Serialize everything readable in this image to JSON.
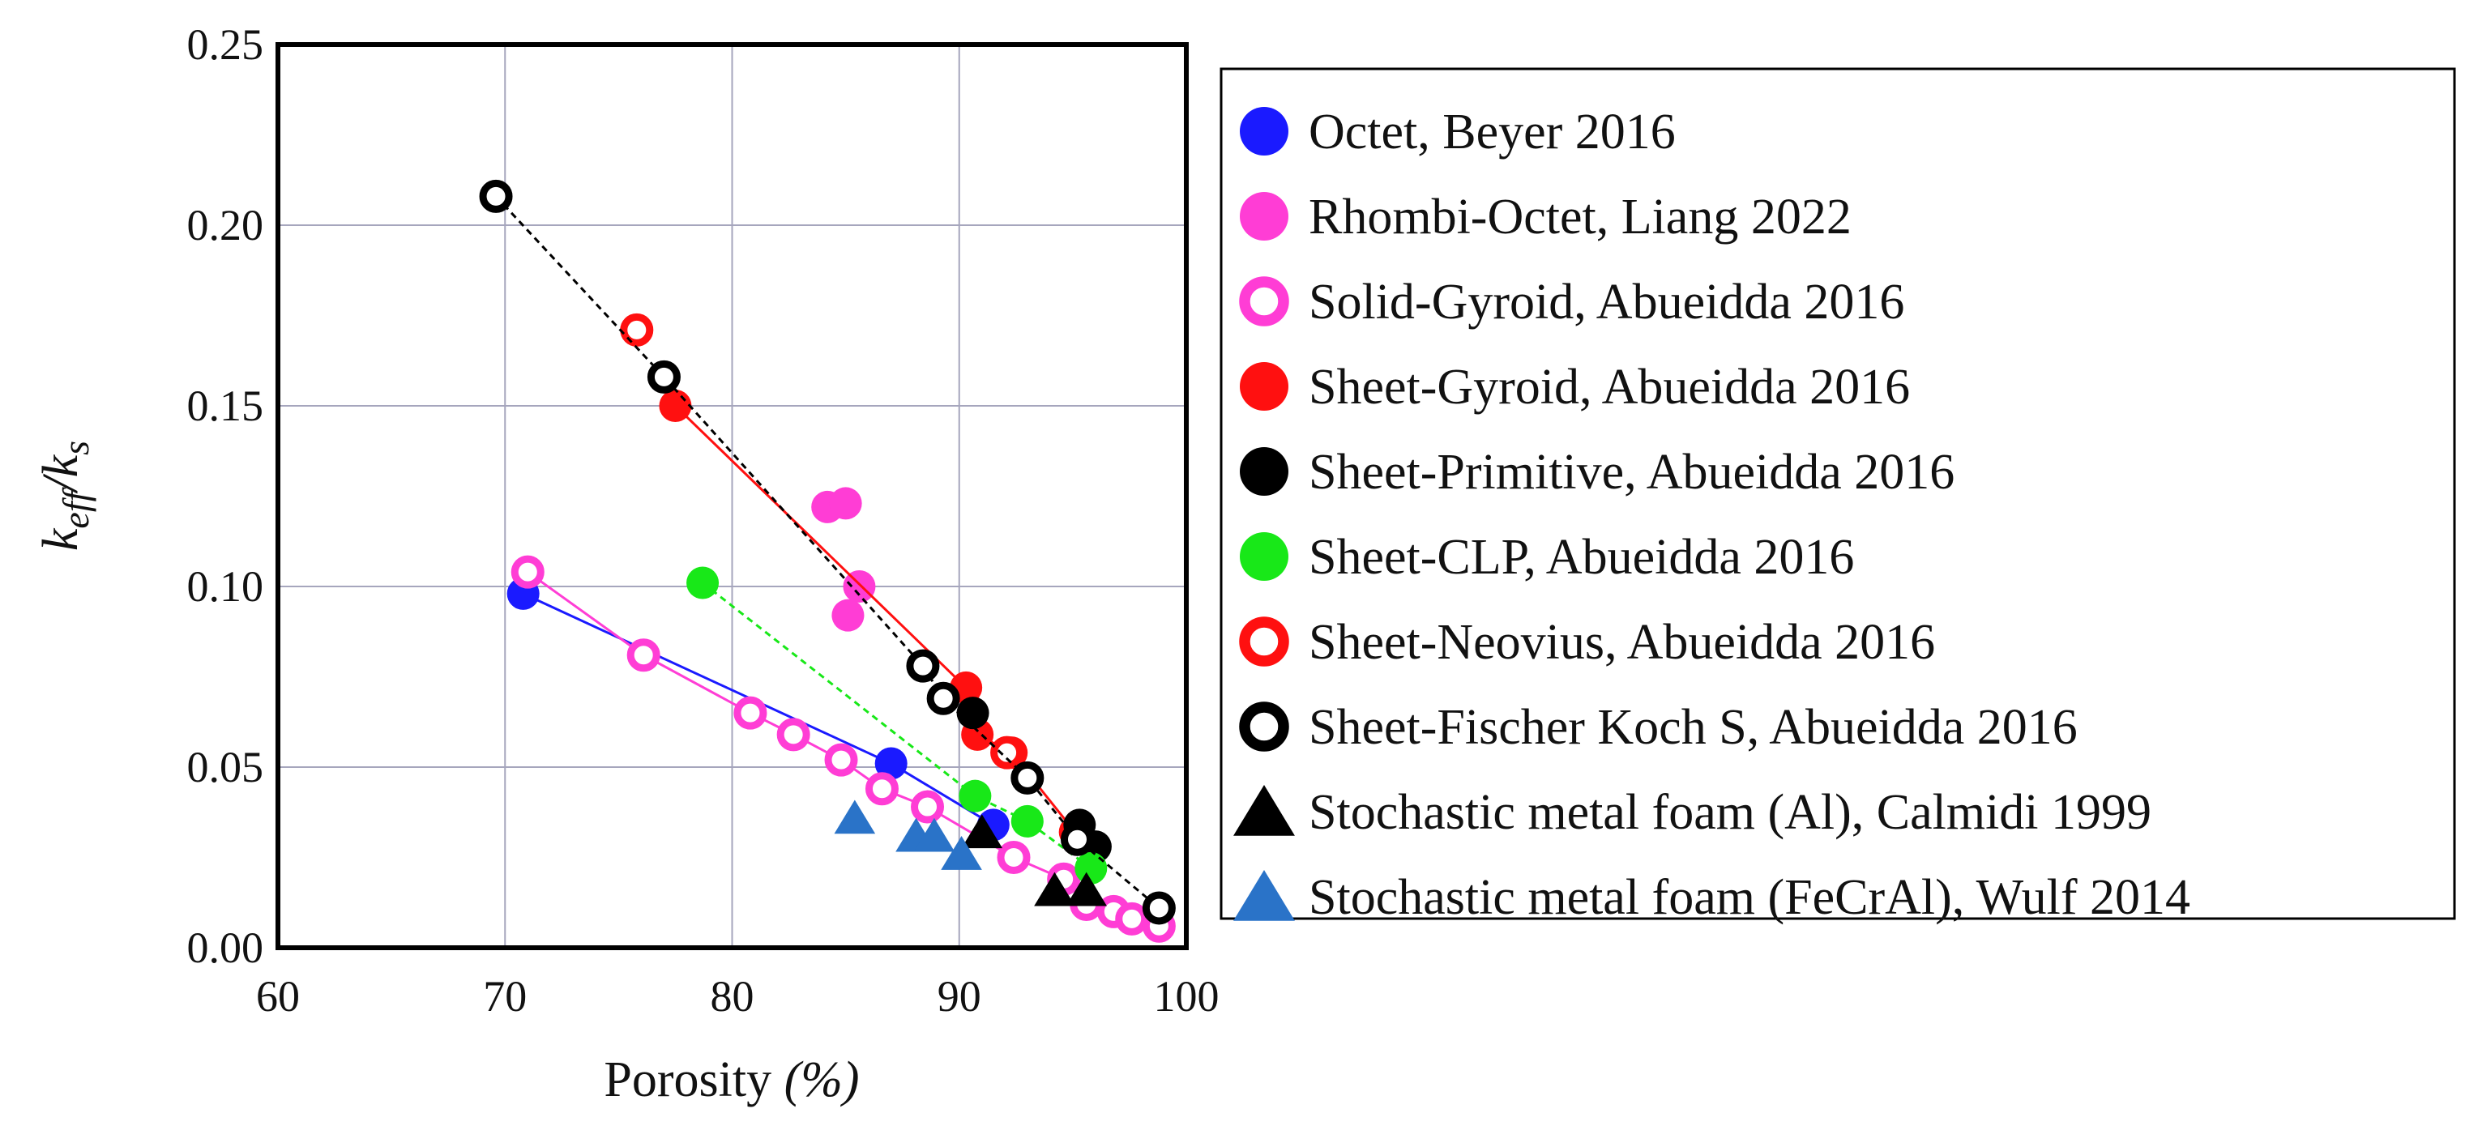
{
  "chart_data": {
    "type": "scatter",
    "xlabel": "Porosity",
    "xlabel_unit": "(%)",
    "ylabel": {
      "k": "k",
      "eff": "eff",
      "slash": "/",
      "k2": "k",
      "s": "s"
    },
    "xlim": [
      60,
      100
    ],
    "ylim": [
      0,
      0.25
    ],
    "x_ticks": [
      "60",
      "70",
      "80",
      "90",
      "100"
    ],
    "y_ticks": [
      "0.00",
      "0.05",
      "0.10",
      "0.15",
      "0.20",
      "0.25"
    ],
    "grid": true,
    "legend_position": "right",
    "series": [
      {
        "name": "Octet, Beyer 2016",
        "marker": "circle-filled",
        "color": "#1a1aff",
        "line": "solid",
        "points": [
          [
            70.8,
            0.098
          ],
          [
            87.0,
            0.051
          ],
          [
            91.5,
            0.034
          ]
        ]
      },
      {
        "name": "Rhombi-Octet, Liang 2022",
        "marker": "circle-filled",
        "color": "#ff3dd5",
        "line": "none",
        "points": [
          [
            84.2,
            0.122
          ],
          [
            85.0,
            0.123
          ],
          [
            85.6,
            0.1
          ],
          [
            85.1,
            0.092
          ]
        ]
      },
      {
        "name": "Solid-Gyroid, Abueidda 2016",
        "marker": "circle-open",
        "color": "#ff3dd5",
        "line": "solid",
        "points": [
          [
            71.0,
            0.104
          ],
          [
            76.1,
            0.081
          ],
          [
            80.8,
            0.065
          ],
          [
            82.7,
            0.059
          ],
          [
            84.8,
            0.052
          ],
          [
            86.6,
            0.044
          ],
          [
            88.6,
            0.039
          ],
          [
            92.4,
            0.025
          ],
          [
            94.6,
            0.019
          ],
          [
            95.6,
            0.012
          ],
          [
            96.8,
            0.01
          ],
          [
            97.6,
            0.008
          ],
          [
            98.8,
            0.006
          ]
        ]
      },
      {
        "name": "Sheet-Gyroid, Abueidda 2016",
        "marker": "circle-filled",
        "color": "#ff1010",
        "line": "solid",
        "points": [
          [
            77.5,
            0.15
          ],
          [
            90.3,
            0.072
          ],
          [
            90.8,
            0.059
          ],
          [
            92.3,
            0.054
          ],
          [
            95.1,
            0.032
          ]
        ]
      },
      {
        "name": "Sheet-Primitive, Abueidda 2016",
        "marker": "circle-filled",
        "color": "#000000",
        "line": "none",
        "points": [
          [
            90.6,
            0.065
          ],
          [
            95.3,
            0.034
          ],
          [
            96.0,
            0.028
          ],
          [
            98.8,
            0.011
          ]
        ]
      },
      {
        "name": "Sheet-CLP, Abueidda 2016",
        "marker": "circle-filled",
        "color": "#18e818",
        "line": "dashed",
        "points": [
          [
            78.7,
            0.101
          ],
          [
            90.7,
            0.042
          ],
          [
            93.0,
            0.035
          ],
          [
            95.8,
            0.022
          ]
        ]
      },
      {
        "name": "Sheet-Neovius, Abueidda 2016",
        "marker": "circle-open",
        "color": "#ff1010",
        "line": "none",
        "points": [
          [
            75.8,
            0.171
          ],
          [
            92.1,
            0.054
          ]
        ]
      },
      {
        "name": "Sheet-Fischer Koch S, Abueidda 2016",
        "marker": "circle-open",
        "color": "#000000",
        "line": "dashed",
        "points": [
          [
            69.6,
            0.208
          ],
          [
            77.0,
            0.158
          ],
          [
            88.4,
            0.078
          ],
          [
            89.3,
            0.069
          ],
          [
            93.0,
            0.047
          ],
          [
            95.2,
            0.03
          ],
          [
            98.8,
            0.011
          ]
        ]
      },
      {
        "name": "Stochastic metal foam (Al), Calmidi 1999",
        "marker": "triangle-filled",
        "color": "#000000",
        "line": "none",
        "points": [
          [
            91.0,
            0.032
          ],
          [
            94.2,
            0.016
          ],
          [
            95.6,
            0.016
          ]
        ]
      },
      {
        "name": "Stochastic metal foam (FeCrAl), Wulf 2014",
        "marker": "triangle-filled",
        "color": "#2a73c8",
        "line": "none",
        "points": [
          [
            85.4,
            0.036
          ],
          [
            88.1,
            0.031
          ],
          [
            88.9,
            0.031
          ],
          [
            90.1,
            0.026
          ]
        ]
      }
    ]
  }
}
